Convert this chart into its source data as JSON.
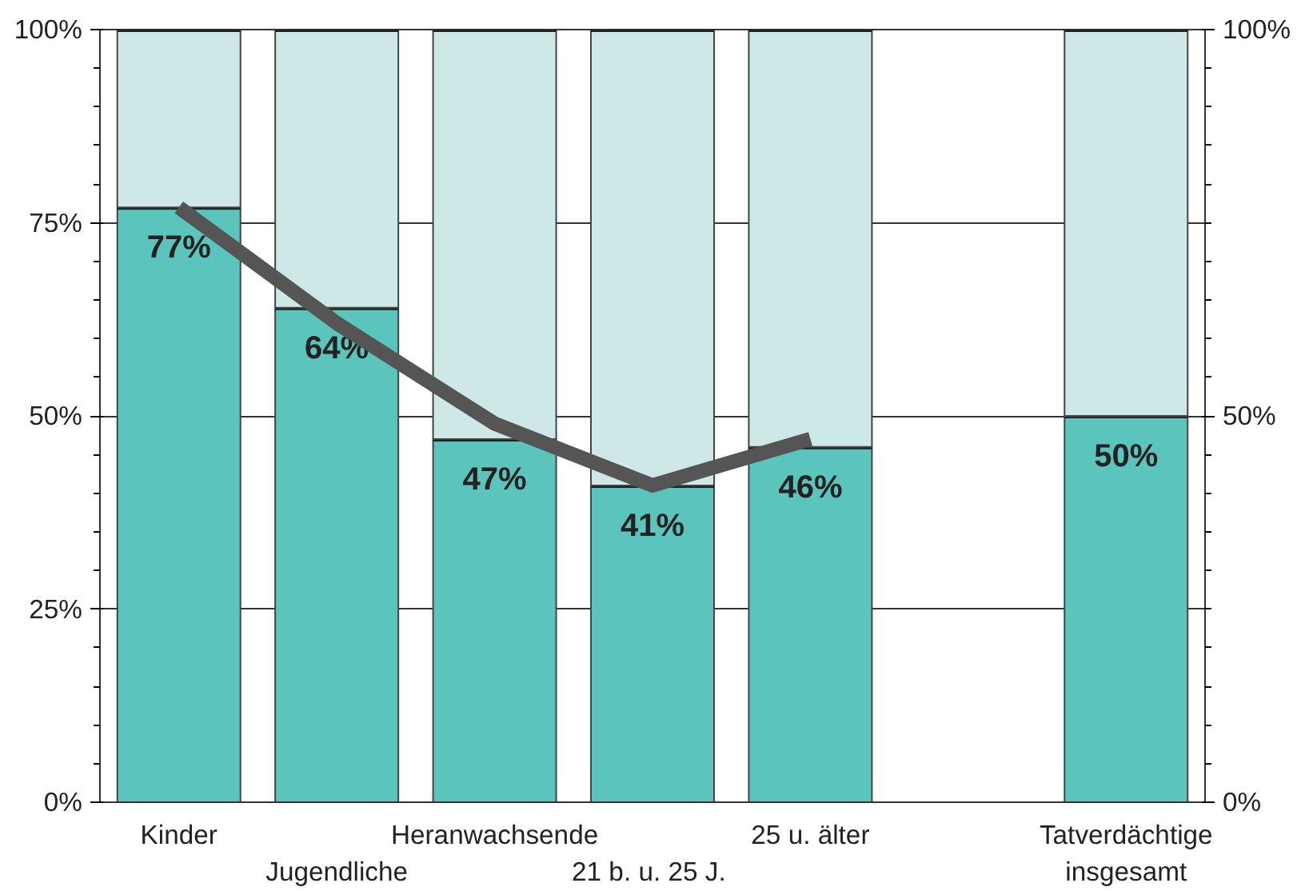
{
  "chart_data": {
    "type": "bar",
    "stacked": true,
    "categories": [
      "Kinder",
      "Jugendliche",
      "Heranwachsende",
      "21 b. u.  25 J.",
      "25 u. älter",
      null,
      "Tatverdächtige insgesamt"
    ],
    "series": [
      {
        "color": "#5bc4bc",
        "values": [
          77,
          64,
          47,
          41,
          46,
          null,
          50
        ],
        "value_labels": [
          "77%",
          "64%",
          "47%",
          "41%",
          "46%",
          null,
          "50%"
        ]
      },
      {
        "color": "#cde8e6",
        "values": [
          23,
          36,
          53,
          59,
          54,
          null,
          50
        ]
      },
      {
        "type": "line",
        "color": "#555555",
        "values": [
          77,
          62,
          49,
          41,
          47,
          null,
          null
        ]
      }
    ],
    "ylim": [
      0,
      100
    ],
    "yticks": [
      {
        "value": 0,
        "label": "0%"
      },
      {
        "value": 25,
        "label": "25%"
      },
      {
        "value": 50,
        "label": "50%"
      },
      {
        "value": 75,
        "label": "75%"
      },
      {
        "value": 100,
        "label": "100%"
      }
    ],
    "y2lim": [
      0,
      100
    ],
    "y2ticks": [
      {
        "value": 0,
        "label": "0%"
      },
      {
        "value": 50,
        "label": "50%"
      },
      {
        "value": 100,
        "label": "100%"
      }
    ],
    "grid": "y"
  }
}
